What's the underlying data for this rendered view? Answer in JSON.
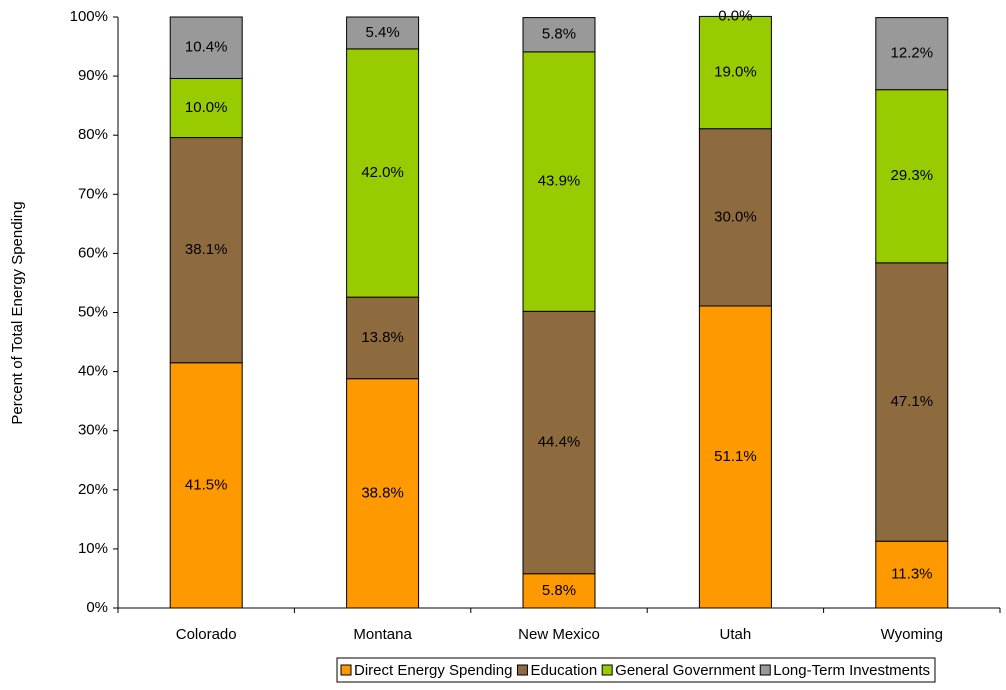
{
  "chart_data": {
    "type": "stacked-bar",
    "y_label": "Percent of Total Energy Spending",
    "categories": [
      "Colorado",
      "Montana",
      "New Mexico",
      "Utah",
      "Wyoming"
    ],
    "series": [
      {
        "name": "Direct Energy Spending",
        "color": "#FF9900",
        "values": [
          41.5,
          38.8,
          5.8,
          51.1,
          11.3
        ],
        "value_labels": [
          "41.5%",
          "38.8%",
          "5.8%",
          "51.1%",
          "11.3%"
        ]
      },
      {
        "name": "Education",
        "color": "#8E6B3E",
        "values": [
          38.1,
          13.8,
          44.4,
          30.0,
          47.1
        ],
        "value_labels": [
          "38.1%",
          "13.8%",
          "44.4%",
          "30.0%",
          "47.1%"
        ]
      },
      {
        "name": "General Government",
        "color": "#99CC00",
        "values": [
          10.0,
          42.0,
          43.9,
          19.0,
          29.3
        ],
        "value_labels": [
          "10.0%",
          "42.0%",
          "43.9%",
          "19.0%",
          "29.3%"
        ]
      },
      {
        "name": "Long-Term Investments",
        "color": "#999999",
        "values": [
          10.4,
          5.4,
          5.8,
          0.0,
          12.2
        ],
        "value_labels": [
          "10.4%",
          "5.4%",
          "5.8%",
          "0.0%",
          "12.2%"
        ]
      }
    ],
    "ylim": [
      0,
      100
    ],
    "yticks": [
      {
        "value": 0,
        "label": "0%"
      },
      {
        "value": 10,
        "label": "10%"
      },
      {
        "value": 20,
        "label": "20%"
      },
      {
        "value": 30,
        "label": "30%"
      },
      {
        "value": 40,
        "label": "40%"
      },
      {
        "value": 50,
        "label": "50%"
      },
      {
        "value": 60,
        "label": "60%"
      },
      {
        "value": 70,
        "label": "70%"
      },
      {
        "value": 80,
        "label": "80%"
      },
      {
        "value": 90,
        "label": "90%"
      },
      {
        "value": 100,
        "label": "100%"
      }
    ],
    "grid": false
  }
}
